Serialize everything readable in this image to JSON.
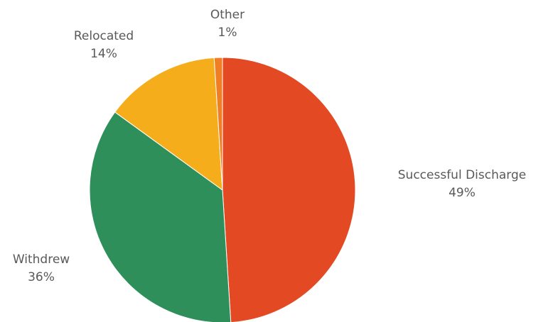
{
  "chart_data": {
    "type": "pie",
    "title": "",
    "slices": [
      {
        "label": "Successful Discharge",
        "value": 49,
        "value_label": "49%",
        "color": "#E34A24"
      },
      {
        "label": "Withdrew",
        "value": 36,
        "value_label": "36%",
        "color": "#2E8F5A"
      },
      {
        "label": "Relocated",
        "value": 14,
        "value_label": "14%",
        "color": "#F5AD1B"
      },
      {
        "label": "Other",
        "value": 1,
        "value_label": "1%",
        "color": "#EF7E24"
      }
    ],
    "start": "12 o'clock",
    "direction": "clockwise",
    "legend": "none",
    "labels": "outside, category name and percentage"
  }
}
